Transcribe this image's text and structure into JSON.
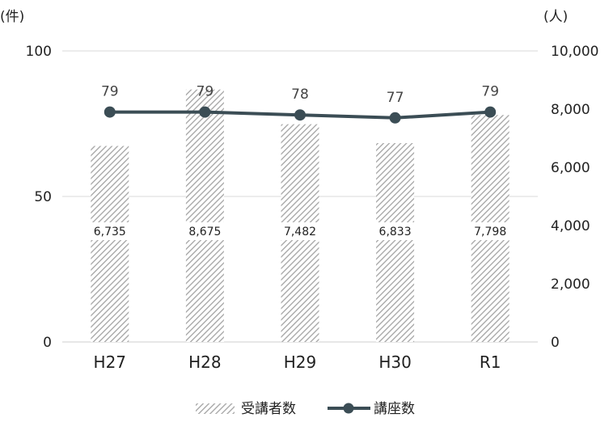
{
  "chart_data": {
    "type": "bar+line",
    "categories": [
      "H27",
      "H28",
      "H29",
      "H30",
      "R1"
    ],
    "left_axis": {
      "unit_label": "(件)",
      "range": [
        0,
        100
      ],
      "ticks": [
        0,
        50,
        100
      ],
      "tick_labels": [
        "0",
        "50",
        "100"
      ]
    },
    "right_axis": {
      "unit_label": "(人)",
      "range": [
        0,
        10000
      ],
      "ticks": [
        0,
        2000,
        4000,
        6000,
        8000,
        10000
      ],
      "tick_labels": [
        "0",
        "2,000",
        "4,000",
        "6,000",
        "8,000",
        "10,000"
      ]
    },
    "series": [
      {
        "name": "受講者数",
        "type": "bar",
        "axis": "right",
        "values": [
          6735,
          8675,
          7482,
          6833,
          7798
        ],
        "labels": [
          "6,735",
          "8,675",
          "7,482",
          "6,833",
          "7,798"
        ],
        "color": "#a9a9a9"
      },
      {
        "name": "講座数",
        "type": "line",
        "axis": "left",
        "values": [
          79,
          79,
          78,
          77,
          79
        ],
        "labels": [
          "79",
          "79",
          "78",
          "77",
          "79"
        ],
        "color": "#3b4d55"
      }
    ],
    "grid": true,
    "legend_position": "bottom"
  }
}
